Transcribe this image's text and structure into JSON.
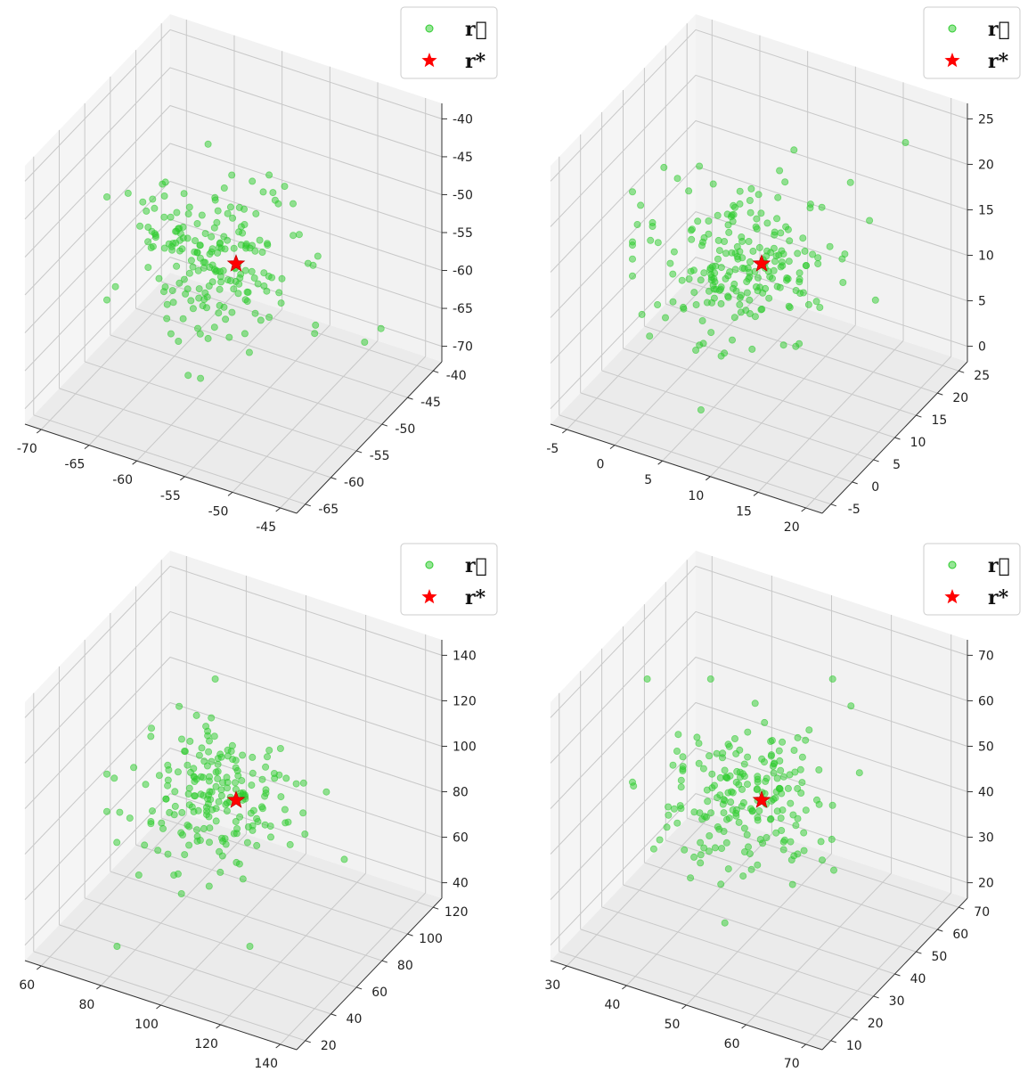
{
  "colors": {
    "points": "#2ecc2e",
    "star": "#ff0000",
    "pane": "#f2f2f2",
    "grid": "#c8c8c8"
  },
  "chart_data": [
    {
      "type": "scatter",
      "title": "",
      "legend": {
        "placement": "top-right",
        "entries": [
          "r⃗",
          "r*"
        ]
      },
      "axes": {
        "x": {
          "ticks": [
            -70,
            -65,
            -60,
            -55,
            -50,
            -45
          ]
        },
        "y": {
          "ticks": [
            -65,
            -60,
            -55,
            -50,
            -45,
            -40
          ]
        },
        "z": {
          "ticks": [
            -70,
            -65,
            -60,
            -55,
            -50,
            -45,
            -40
          ]
        }
      },
      "series": [
        {
          "name": "r⃗",
          "marker": "circle",
          "color": "green",
          "approx_count": 200,
          "center": [
            -57.5,
            -54,
            -59
          ],
          "spread": 4
        },
        {
          "name": "r*",
          "marker": "star",
          "color": "red",
          "points": [
            [
              -57.5,
              -54,
              -59
            ]
          ]
        }
      ],
      "grid": true
    },
    {
      "type": "scatter",
      "title": "",
      "legend": {
        "placement": "top-right",
        "entries": [
          "r⃗",
          "r*"
        ]
      },
      "axes": {
        "x": {
          "ticks": [
            -5,
            0,
            5,
            10,
            15,
            20
          ]
        },
        "y": {
          "ticks": [
            -5,
            0,
            5,
            10,
            15,
            20,
            25
          ]
        },
        "z": {
          "ticks": [
            0,
            5,
            10,
            15,
            20,
            25
          ]
        }
      },
      "series": [
        {
          "name": "r⃗",
          "marker": "circle",
          "color": "green",
          "approx_count": 220,
          "center": [
            8,
            10,
            7
          ],
          "spread": 5
        },
        {
          "name": "r*",
          "marker": "star",
          "color": "red",
          "points": [
            [
              8,
              10,
              7
            ]
          ]
        }
      ],
      "grid": true
    },
    {
      "type": "scatter",
      "title": "",
      "legend": {
        "placement": "top-right",
        "entries": [
          "r⃗",
          "r*"
        ]
      },
      "axes": {
        "x": {
          "ticks": [
            60,
            80,
            100,
            120,
            140
          ]
        },
        "y": {
          "ticks": [
            20,
            40,
            60,
            80,
            100,
            120
          ]
        },
        "z": {
          "ticks": [
            40,
            60,
            80,
            100,
            120,
            140
          ]
        }
      },
      "series": [
        {
          "name": "r⃗",
          "marker": "circle",
          "color": "green",
          "approx_count": 200,
          "center": [
            88,
            80,
            84
          ],
          "spread": 12
        },
        {
          "name": "r*",
          "marker": "star",
          "color": "red",
          "points": [
            [
              88,
              80,
              84
            ]
          ]
        }
      ],
      "grid": true
    },
    {
      "type": "scatter",
      "title": "",
      "legend": {
        "placement": "top-right",
        "entries": [
          "r⃗",
          "r*"
        ]
      },
      "axes": {
        "x": {
          "ticks": [
            30,
            40,
            50,
            60,
            70
          ]
        },
        "y": {
          "ticks": [
            10,
            20,
            30,
            40,
            50,
            60,
            70
          ]
        },
        "z": {
          "ticks": [
            20,
            30,
            40,
            50,
            60,
            70
          ]
        }
      },
      "series": [
        {
          "name": "r⃗",
          "marker": "circle",
          "color": "green",
          "approx_count": 200,
          "center": [
            43,
            42,
            40
          ],
          "spread": 8
        },
        {
          "name": "r*",
          "marker": "star",
          "color": "red",
          "points": [
            [
              43,
              42,
              40
            ]
          ]
        }
      ],
      "grid": true
    }
  ]
}
